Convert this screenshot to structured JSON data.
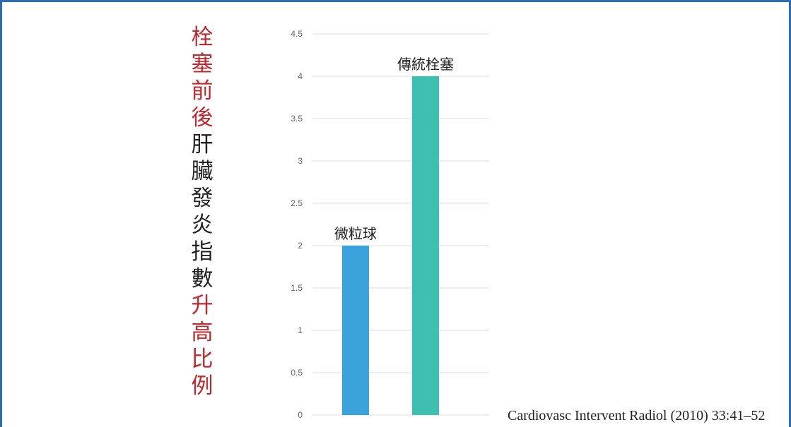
{
  "title_chars": [
    {
      "ch": "栓",
      "color": "#c0282d"
    },
    {
      "ch": "塞",
      "color": "#c0282d"
    },
    {
      "ch": "前",
      "color": "#c0282d"
    },
    {
      "ch": "後",
      "color": "#c0282d"
    },
    {
      "ch": "肝",
      "color": "#222222"
    },
    {
      "ch": "臟",
      "color": "#222222"
    },
    {
      "ch": "發",
      "color": "#222222"
    },
    {
      "ch": "炎",
      "color": "#222222"
    },
    {
      "ch": "指",
      "color": "#222222"
    },
    {
      "ch": "數",
      "color": "#222222"
    },
    {
      "ch": "升",
      "color": "#c0282d"
    },
    {
      "ch": "高",
      "color": "#c0282d"
    },
    {
      "ch": "比",
      "color": "#c0282d"
    },
    {
      "ch": "例",
      "color": "#c0282d"
    }
  ],
  "citation": "Cardiovasc Intervent Radiol (2010) 33:41–52",
  "chart_data": {
    "type": "bar",
    "title": "栓塞前後肝臟發炎指數升高比例",
    "categories": [
      "微粒球",
      "傳統栓塞"
    ],
    "values": [
      2,
      4
    ],
    "colors": [
      "#3aa3dc",
      "#3fbfb0"
    ],
    "ylim": [
      0,
      4.5
    ],
    "yticks": [
      "0",
      "0.5",
      "1",
      "1.5",
      "2",
      "2.5",
      "3",
      "3.5",
      "4",
      "4.5"
    ],
    "grid": true,
    "legend": "none"
  }
}
